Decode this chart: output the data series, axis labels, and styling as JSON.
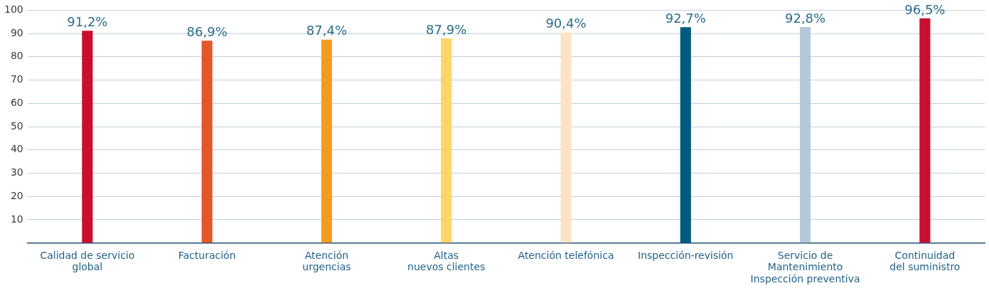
{
  "chart_data": {
    "type": "bar",
    "categories": [
      "Calidad de servicio\nglobal",
      "Facturación",
      "Atención\nurgencias",
      "Altas\nnuevos clientes",
      "Atención telefónica",
      "Inspección-revisión",
      "Servicio de\nMantenimiento\nInspección preventiva",
      "Continuidad\ndel suministro"
    ],
    "values": [
      91.2,
      86.9,
      87.4,
      87.9,
      90.4,
      92.7,
      92.8,
      96.5
    ],
    "colors": [
      "#c8102e",
      "#e2582a",
      "#f59c20",
      "#fdd668",
      "#fde3c6",
      "#005a7d",
      "#b4c8d8",
      "#c8102e"
    ],
    "value_labels": [
      "91,2%",
      "86,9%",
      "87,4%",
      "87,9%",
      "90,4%",
      "92,7%",
      "92,8%",
      "96,5%"
    ],
    "ylim": [
      0,
      100
    ],
    "yticks": [
      10,
      20,
      30,
      40,
      50,
      60,
      70,
      80,
      90,
      100
    ],
    "grid": "y",
    "legend": false
  }
}
